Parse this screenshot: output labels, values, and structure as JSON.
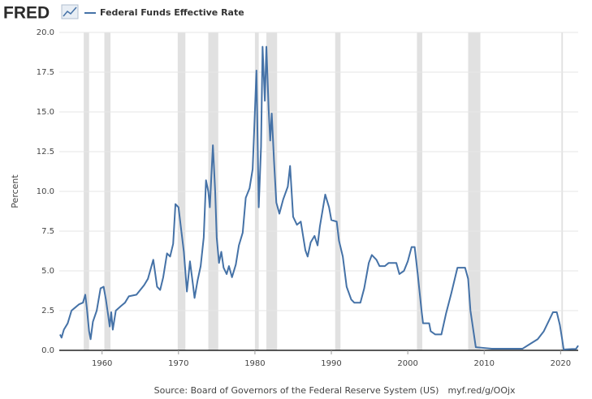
{
  "logo": "FRED",
  "chart_data": {
    "type": "line",
    "ylabel": "Percent",
    "source": "Source: Board of Governors of the Federal Reserve System (US)",
    "link": "myf.red/g/OOjx",
    "xlim": [
      1954.4,
      2022.3
    ],
    "xticks": [
      1960,
      1970,
      1980,
      1990,
      2000,
      2010,
      2020
    ],
    "ylim": [
      0,
      20
    ],
    "yticks": [
      {
        "value": 0,
        "label": "0.0"
      },
      2.5,
      {
        "value": 5,
        "label": "5.0"
      },
      7.5,
      {
        "value": 10,
        "label": "10.0"
      },
      12.5,
      {
        "value": 15,
        "label": "15.0"
      },
      17.5,
      {
        "value": 20,
        "label": "20.0"
      }
    ],
    "grid": true,
    "recessions": [
      [
        1957.6,
        1958.3
      ],
      [
        1960.3,
        1961.1
      ],
      [
        1969.9,
        1970.9
      ],
      [
        1973.9,
        1975.2
      ],
      [
        1980.0,
        1980.5
      ],
      [
        1981.5,
        1982.9
      ],
      [
        1990.5,
        1991.2
      ],
      [
        2001.2,
        2001.9
      ],
      [
        2007.9,
        2009.5
      ],
      [
        2020.1,
        2020.3
      ]
    ],
    "series": [
      {
        "name": "Federal Funds Effective Rate",
        "color": "#4572a7",
        "x": [
          1954.5,
          1954.7,
          1955.0,
          1955.5,
          1956.0,
          1956.5,
          1957.0,
          1957.5,
          1957.8,
          1958.0,
          1958.3,
          1958.5,
          1958.8,
          1959.3,
          1959.8,
          1960.2,
          1960.5,
          1960.8,
          1961.0,
          1961.2,
          1961.4,
          1961.8,
          1962.5,
          1963.0,
          1963.5,
          1964.5,
          1965.5,
          1966.0,
          1966.7,
          1967.2,
          1967.6,
          1968.0,
          1968.5,
          1968.9,
          1969.3,
          1969.6,
          1970.0,
          1970.3,
          1970.7,
          1971.1,
          1971.5,
          1971.9,
          1972.1,
          1972.5,
          1972.9,
          1973.3,
          1973.6,
          1973.9,
          1974.1,
          1974.5,
          1974.8,
          1975.0,
          1975.3,
          1975.6,
          1975.9,
          1976.3,
          1976.6,
          1977.0,
          1977.5,
          1977.9,
          1978.4,
          1978.8,
          1979.3,
          1979.7,
          1979.9,
          1980.2,
          1980.5,
          1980.8,
          1981.0,
          1981.3,
          1981.5,
          1981.8,
          1982.0,
          1982.2,
          1982.5,
          1982.8,
          1983.2,
          1983.7,
          1984.3,
          1984.6,
          1985.0,
          1985.5,
          1986.0,
          1986.6,
          1986.9,
          1987.3,
          1987.8,
          1988.2,
          1988.5,
          1989.2,
          1989.7,
          1990.0,
          1990.7,
          1991.0,
          1991.5,
          1992.0,
          1992.6,
          1993.0,
          1993.8,
          1994.3,
          1994.9,
          1995.3,
          1995.9,
          1996.3,
          1997.0,
          1997.5,
          1998.5,
          1998.9,
          1999.5,
          2000.0,
          2000.5,
          2000.9,
          2001.3,
          2001.8,
          2002.0,
          2002.8,
          2003.0,
          2003.6,
          2004.4,
          2005.0,
          2005.7,
          2006.5,
          2007.5,
          2007.9,
          2008.2,
          2008.9,
          2010.0,
          2011.0,
          2013.0,
          2015.0,
          2016.0,
          2017.0,
          2017.8,
          2018.5,
          2019.0,
          2019.5,
          2019.9,
          2020.2,
          2020.4,
          2021.5,
          2022.0,
          2022.3
        ],
        "values": [
          1.0,
          0.8,
          1.3,
          1.7,
          2.5,
          2.7,
          2.9,
          3.0,
          3.5,
          2.7,
          1.2,
          0.7,
          1.8,
          2.5,
          3.9,
          4.0,
          3.2,
          2.2,
          1.5,
          2.4,
          1.3,
          2.5,
          2.8,
          3.0,
          3.4,
          3.5,
          4.1,
          4.5,
          5.7,
          4.0,
          3.8,
          4.6,
          6.1,
          5.9,
          6.7,
          9.2,
          9.0,
          7.8,
          6.2,
          3.7,
          5.6,
          4.1,
          3.3,
          4.4,
          5.3,
          7.1,
          10.7,
          10.0,
          9.0,
          12.9,
          10.0,
          7.1,
          5.5,
          6.2,
          5.2,
          4.8,
          5.3,
          4.6,
          5.4,
          6.6,
          7.4,
          9.6,
          10.2,
          11.4,
          13.8,
          17.6,
          9.0,
          12.8,
          19.1,
          15.7,
          19.1,
          15.1,
          13.2,
          14.9,
          11.9,
          9.3,
          8.6,
          9.5,
          10.3,
          11.6,
          8.4,
          7.9,
          8.1,
          6.3,
          5.9,
          6.8,
          7.2,
          6.6,
          7.8,
          9.8,
          9.0,
          8.2,
          8.1,
          6.9,
          5.9,
          4.0,
          3.2,
          3.0,
          3.0,
          3.9,
          5.5,
          6.0,
          5.7,
          5.3,
          5.3,
          5.5,
          5.5,
          4.8,
          5.0,
          5.6,
          6.5,
          6.5,
          4.8,
          2.5,
          1.7,
          1.7,
          1.2,
          1.0,
          1.0,
          2.3,
          3.6,
          5.2,
          5.2,
          4.5,
          2.5,
          0.2,
          0.15,
          0.1,
          0.1,
          0.1,
          0.4,
          0.7,
          1.2,
          1.9,
          2.4,
          2.4,
          1.6,
          0.7,
          0.05,
          0.08,
          0.08,
          0.3
        ]
      }
    ]
  }
}
